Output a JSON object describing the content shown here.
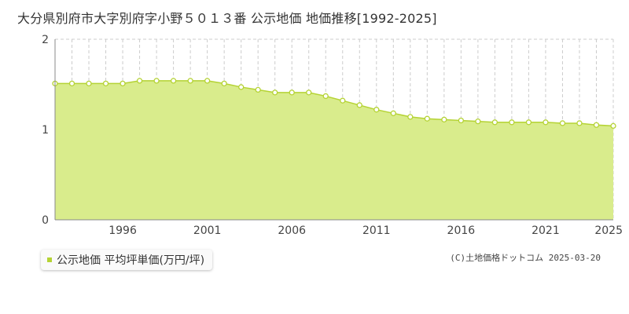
{
  "title": "大分県別府市大字別府字小野５０１３番 公示地価 地価推移[1992-2025]",
  "legend_label": "公示地価 平均坪単価(万円/坪)",
  "credit": "(C)土地価格ドットコム 2025-03-20",
  "colors": {
    "fill": "#d9ec8c",
    "line": "#b5d334",
    "marker_fill": "#ffffff",
    "grid": "#cccccc",
    "axis": "#888888"
  },
  "chart_data": {
    "type": "area",
    "x": [
      1992,
      1993,
      1994,
      1995,
      1996,
      1997,
      1998,
      1999,
      2000,
      2001,
      2002,
      2003,
      2004,
      2005,
      2006,
      2007,
      2008,
      2009,
      2010,
      2011,
      2012,
      2013,
      2014,
      2015,
      2016,
      2017,
      2018,
      2019,
      2020,
      2021,
      2022,
      2023,
      2024,
      2025
    ],
    "series": [
      {
        "name": "公示地価 平均坪単価(万円/坪)",
        "values": [
          1.51,
          1.51,
          1.51,
          1.51,
          1.51,
          1.54,
          1.54,
          1.54,
          1.54,
          1.54,
          1.51,
          1.47,
          1.44,
          1.41,
          1.41,
          1.41,
          1.37,
          1.32,
          1.27,
          1.22,
          1.18,
          1.14,
          1.12,
          1.11,
          1.1,
          1.09,
          1.08,
          1.08,
          1.08,
          1.08,
          1.07,
          1.07,
          1.05,
          1.04
        ]
      }
    ],
    "xlim": [
      1992,
      2025
    ],
    "ylim": [
      0,
      2
    ],
    "x_tick_labels": [
      "1996",
      "2001",
      "2006",
      "2011",
      "2016",
      "2021",
      "2025"
    ],
    "y_tick_labels": [
      "0",
      "1",
      "2"
    ],
    "xlabel": "",
    "ylabel": "",
    "grid": true,
    "legend_position": "bottom-left"
  }
}
